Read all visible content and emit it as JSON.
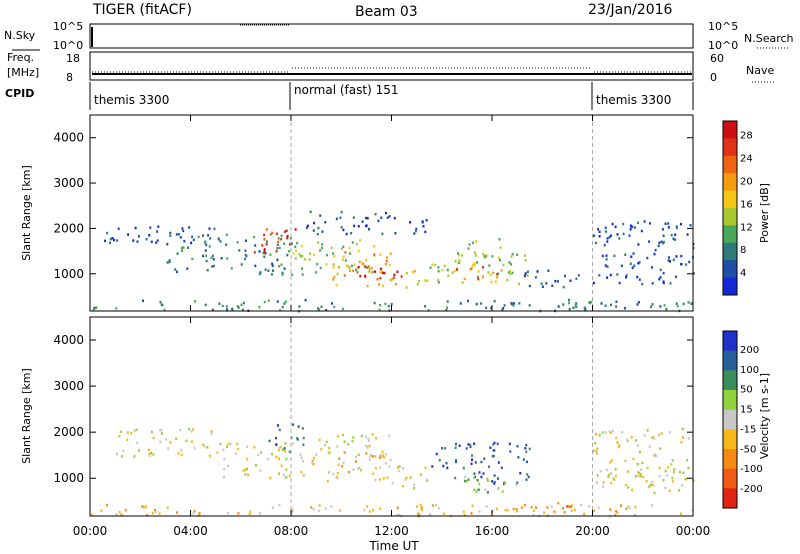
{
  "header": {
    "station": "TIGER (fitACF)",
    "beam": "Beam 03",
    "date": "23/Jan/2016"
  },
  "panels": {
    "nsky": {
      "left_label": "N.Sky",
      "right_label": "N.Search",
      "left_ticks": [
        "10^5",
        "10^0"
      ],
      "right_ticks": [
        "10^5",
        "10^0"
      ]
    },
    "freq": {
      "left_label_1": "Freq.",
      "left_label_2": "[MHz]",
      "right_label": "Nave",
      "left_ticks": [
        "18",
        "8"
      ],
      "right_ticks": [
        "60",
        "0"
      ]
    },
    "cpid": {
      "label": "CPID",
      "segments": [
        {
          "name": "themis 3300",
          "start_hr": 0,
          "end_hr": 8
        },
        {
          "name": "normal (fast) 151",
          "start_hr": 8,
          "end_hr": 20
        },
        {
          "name": "themis 3300",
          "start_hr": 20,
          "end_hr": 24
        }
      ]
    }
  },
  "chart_data": [
    {
      "type": "heatmap",
      "title": "",
      "xlabel": "",
      "ylabel": "Slant Range [km]",
      "xlim": [
        0,
        24
      ],
      "ylim": [
        180,
        4500
      ],
      "yticks": [
        1000,
        2000,
        3000,
        4000
      ],
      "colorbar": {
        "label": "Power [dB]",
        "ticks": [
          "4",
          "8",
          "12",
          "16",
          "20",
          "24",
          "28"
        ],
        "range": [
          0,
          30
        ],
        "colors": [
          "#1428d8",
          "#1d4ea8",
          "#2e7a78",
          "#4aa85a",
          "#a8c830",
          "#f4c814",
          "#f59b12",
          "#ef6414",
          "#e03218",
          "#cc0f14"
        ]
      },
      "echo_regions": [
        {
          "t0": 0.0,
          "t1": 24.0,
          "r0": 200,
          "r1": 450,
          "level": 2
        },
        {
          "t0": 0.5,
          "t1": 5.0,
          "r0": 1700,
          "r1": 2100,
          "level": 1
        },
        {
          "t0": 3.0,
          "t1": 8.0,
          "r0": 1000,
          "r1": 1900,
          "level": 2
        },
        {
          "t0": 6.5,
          "t1": 8.3,
          "r0": 1500,
          "r1": 2100,
          "level": 8
        },
        {
          "t0": 8.0,
          "t1": 11.5,
          "r0": 1000,
          "r1": 1800,
          "level": 4
        },
        {
          "t0": 9.5,
          "t1": 12.0,
          "r0": 750,
          "r1": 1500,
          "level": 6
        },
        {
          "t0": 10.5,
          "t1": 12.5,
          "r0": 850,
          "r1": 1200,
          "level": 9
        },
        {
          "t0": 12.0,
          "t1": 13.5,
          "r0": 700,
          "r1": 1100,
          "level": 5
        },
        {
          "t0": 13.5,
          "t1": 17.5,
          "r0": 800,
          "r1": 1500,
          "level": 4
        },
        {
          "t0": 14.5,
          "t1": 16.5,
          "r0": 900,
          "r1": 1200,
          "level": 7
        },
        {
          "t0": 15.0,
          "t1": 16.5,
          "r0": 1200,
          "r1": 1800,
          "level": 4
        },
        {
          "t0": 17.0,
          "t1": 19.5,
          "r0": 700,
          "r1": 1100,
          "level": 1
        },
        {
          "t0": 20.0,
          "t1": 24.0,
          "r0": 800,
          "r1": 2200,
          "level": 1
        },
        {
          "t0": 8.5,
          "t1": 13.5,
          "r0": 1900,
          "r1": 2400,
          "level": 1
        }
      ]
    },
    {
      "type": "heatmap",
      "title": "",
      "xlabel": "Time UT",
      "ylabel": "Slant Range [km]",
      "xlim": [
        0,
        24
      ],
      "ylim": [
        180,
        4500
      ],
      "xticks": [
        "00:00",
        "04:00",
        "08:00",
        "12:00",
        "16:00",
        "20:00",
        "00:00"
      ],
      "yticks": [
        1000,
        2000,
        3000,
        4000
      ],
      "colorbar": {
        "label": "Velocity [m s-1]",
        "ticks": [
          "200",
          "100",
          "50",
          "15",
          "-15",
          "-50",
          "-100",
          "-200"
        ],
        "range": [
          -250,
          250
        ],
        "colors": [
          "#2030c8",
          "#26609a",
          "#3a8e5a",
          "#8fd23c",
          "#c8c8c8",
          "#f6b81a",
          "#f58a14",
          "#ef5a14",
          "#e02414"
        ]
      },
      "echo_regions": [
        {
          "t0": 0.0,
          "t1": 24.0,
          "r0": 200,
          "r1": 450,
          "level": 5
        },
        {
          "t0": 1.0,
          "t1": 5.0,
          "r0": 1500,
          "r1": 2100,
          "level": 4
        },
        {
          "t0": 5.0,
          "t1": 8.5,
          "r0": 1000,
          "r1": 1800,
          "level": 4
        },
        {
          "t0": 7.0,
          "t1": 8.5,
          "r0": 1600,
          "r1": 2200,
          "level": 1
        },
        {
          "t0": 8.5,
          "t1": 12.0,
          "r0": 900,
          "r1": 1600,
          "level": 5
        },
        {
          "t0": 9.0,
          "t1": 12.0,
          "r0": 1500,
          "r1": 2000,
          "level": 4
        },
        {
          "t0": 12.0,
          "t1": 13.5,
          "r0": 800,
          "r1": 1300,
          "level": 4
        },
        {
          "t0": 13.5,
          "t1": 17.5,
          "r0": 900,
          "r1": 1800,
          "level": 1
        },
        {
          "t0": 14.5,
          "t1": 17.0,
          "r0": 700,
          "r1": 1100,
          "level": 3
        },
        {
          "t0": 17.5,
          "t1": 19.5,
          "r0": 300,
          "r1": 500,
          "level": 6
        },
        {
          "t0": 20.0,
          "t1": 24.0,
          "r0": 700,
          "r1": 2100,
          "level": 4
        }
      ]
    }
  ]
}
